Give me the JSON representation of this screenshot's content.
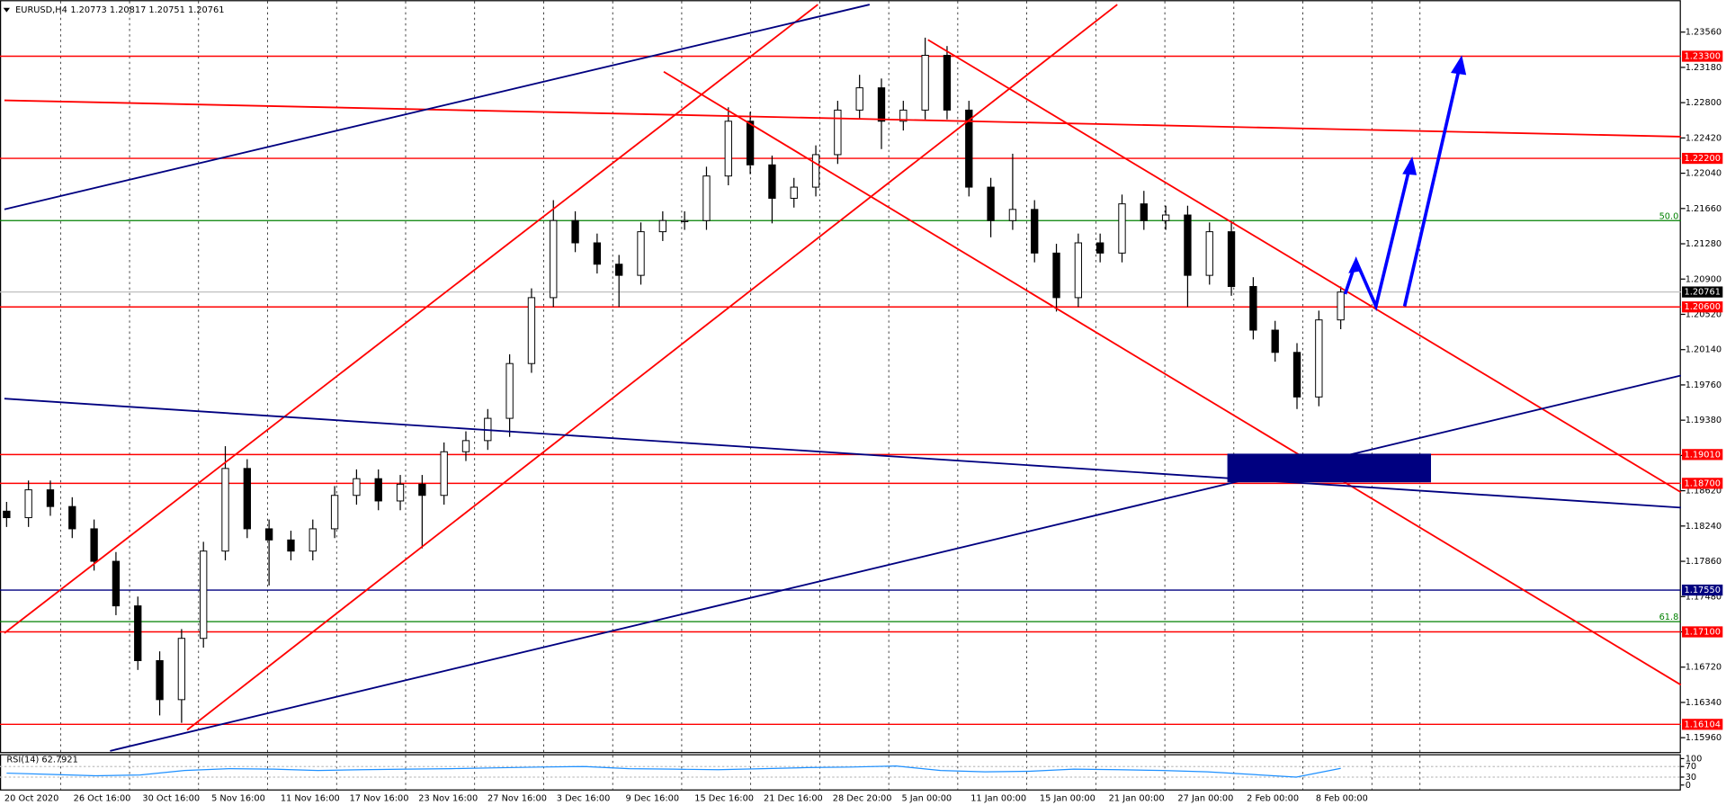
{
  "header": {
    "symbol": "EURUSD,H4",
    "ohlc": "1.20773 1.20817 1.20751 1.20761"
  },
  "chart_data": {
    "type": "candlestick",
    "open": [
      1.184,
      1.1833,
      1.1863,
      1.1845,
      1.1821,
      1.1786,
      1.1738,
      1.1679,
      1.1637,
      1.1703,
      1.1797,
      1.1886,
      1.1821,
      1.1809,
      1.1797,
      1.1821,
      1.1857,
      1.1875,
      1.1851,
      1.1869,
      1.1857,
      1.1904,
      1.1916,
      1.194,
      1.1999,
      1.207,
      1.2153,
      1.2129,
      1.2106,
      1.2094,
      1.2141,
      1.2153,
      1.2153,
      1.2201,
      1.226,
      1.2213,
      1.2177,
      1.2189,
      1.2224,
      1.2272,
      1.2296,
      1.226,
      1.2272,
      1.2331,
      1.2272,
      1.2189,
      1.2153,
      1.2165,
      1.2118,
      1.207,
      1.2129,
      1.2118,
      1.2171,
      1.2153,
      1.2159,
      1.2094,
      1.2141,
      1.2082,
      1.2035,
      1.2011,
      1.1963,
      1.2046
    ],
    "high": [
      1.185,
      1.1873,
      1.1873,
      1.1855,
      1.1831,
      1.1796,
      1.1748,
      1.1689,
      1.1713,
      1.1807,
      1.191,
      1.1896,
      1.1831,
      1.1819,
      1.1831,
      1.1867,
      1.1885,
      1.1885,
      1.1879,
      1.1879,
      1.1914,
      1.1926,
      1.195,
      1.2009,
      1.208,
      1.2175,
      1.2163,
      1.2139,
      1.2116,
      1.2151,
      1.2163,
      1.2163,
      1.2211,
      1.2275,
      1.227,
      1.2223,
      1.2199,
      1.2234,
      1.2282,
      1.231,
      1.2306,
      1.2282,
      1.235,
      1.2341,
      1.2282,
      1.2199,
      1.2225,
      1.2175,
      1.2128,
      1.2139,
      1.2139,
      1.2181,
      1.2185,
      1.2169,
      1.2169,
      1.2151,
      1.2151,
      1.2092,
      1.2045,
      1.2021,
      1.2056,
      1.2082
    ],
    "low": [
      1.1823,
      1.1823,
      1.1835,
      1.1811,
      1.1776,
      1.1728,
      1.1669,
      1.162,
      1.1612,
      1.1693,
      1.1787,
      1.1811,
      1.176,
      1.1787,
      1.1787,
      1.1811,
      1.1847,
      1.1841,
      1.1841,
      1.18,
      1.1847,
      1.1894,
      1.1906,
      1.192,
      1.1989,
      1.206,
      1.2119,
      1.2096,
      1.206,
      1.2084,
      1.2131,
      1.2143,
      1.2143,
      1.2191,
      1.2203,
      1.215,
      1.2167,
      1.2179,
      1.2214,
      1.2262,
      1.223,
      1.225,
      1.2262,
      1.2262,
      1.2179,
      1.2135,
      1.2143,
      1.2108,
      1.2055,
      1.206,
      1.2108,
      1.2108,
      1.2143,
      1.2143,
      1.206,
      1.2084,
      1.2072,
      1.2025,
      1.2001,
      1.195,
      1.1953,
      1.2036
    ],
    "close": [
      1.1833,
      1.1863,
      1.1845,
      1.1821,
      1.1786,
      1.1738,
      1.1679,
      1.1637,
      1.1703,
      1.1797,
      1.1886,
      1.1821,
      1.1809,
      1.1797,
      1.1821,
      1.1857,
      1.1875,
      1.1851,
      1.1869,
      1.1857,
      1.1904,
      1.1916,
      1.194,
      1.1999,
      1.207,
      1.2153,
      1.2129,
      1.2106,
      1.2094,
      1.2141,
      1.2153,
      1.2153,
      1.2201,
      1.226,
      1.2213,
      1.2177,
      1.2189,
      1.2224,
      1.2272,
      1.2296,
      1.226,
      1.2272,
      1.2331,
      1.2272,
      1.2189,
      1.2153,
      1.2165,
      1.2118,
      1.207,
      1.2129,
      1.2118,
      1.2171,
      1.2153,
      1.2159,
      1.2094,
      1.2141,
      1.2082,
      1.2035,
      1.2011,
      1.1963,
      1.2046,
      1.2076
    ],
    "x_labels": [
      "20 Oct 2020",
      "26 Oct 16:00",
      "30 Oct 16:00",
      "5 Nov 16:00",
      "11 Nov 16:00",
      "17 Nov 16:00",
      "23 Nov 16:00",
      "27 Nov 16:00",
      "3 Dec 16:00",
      "9 Dec 16:00",
      "15 Dec 16:00",
      "21 Dec 16:00",
      "28 Dec 20:00",
      "5 Jan 00:00",
      "11 Jan 00:00",
      "15 Jan 00:00",
      "21 Jan 00:00",
      "27 Jan 00:00",
      "2 Feb 00:00",
      "8 Feb 00:00"
    ],
    "ylim": [
      1.15806,
      1.23904
    ],
    "yticks": [
      {
        "value": 1.2356,
        "label": "1.23560"
      },
      {
        "value": 1.2318,
        "label": "1.23180"
      },
      {
        "value": 1.228,
        "label": "1.22800"
      },
      {
        "value": 1.2242,
        "label": "1.22420"
      },
      {
        "value": 1.2204,
        "label": "1.22040"
      },
      {
        "value": 1.2166,
        "label": "1.21660"
      },
      {
        "value": 1.2128,
        "label": "1.21280"
      },
      {
        "value": 1.209,
        "label": "1.20900"
      },
      {
        "value": 1.2052,
        "label": "1.20520"
      },
      {
        "value": 1.2014,
        "label": "1.20140"
      },
      {
        "value": 1.1976,
        "label": "1.19760"
      },
      {
        "value": 1.1938,
        "label": "1.19380"
      },
      {
        "value": 1.19,
        "label": "1.19000"
      },
      {
        "value": 1.1862,
        "label": "1.18620"
      },
      {
        "value": 1.1824,
        "label": "1.18240"
      },
      {
        "value": 1.1786,
        "label": "1.17860"
      },
      {
        "value": 1.1748,
        "label": "1.17480"
      },
      {
        "value": 1.171,
        "label": "1.17100"
      },
      {
        "value": 1.1672,
        "label": "1.16720"
      },
      {
        "value": 1.1634,
        "label": "1.16340"
      },
      {
        "value": 1.1596,
        "label": "1.15960"
      }
    ],
    "levels": [
      {
        "value": 1.233,
        "label": "1.23300",
        "color": "#ff0000"
      },
      {
        "value": 1.222,
        "label": "1.22200",
        "color": "#ff0000"
      },
      {
        "value": 1.206,
        "label": "1.20600",
        "color": "#ff0000"
      },
      {
        "value": 1.1901,
        "label": "1.19010",
        "color": "#ff0000"
      },
      {
        "value": 1.187,
        "label": "1.18700",
        "color": "#ff0000"
      },
      {
        "value": 1.1755,
        "label": "1.17550",
        "color": "#000080"
      },
      {
        "value": 1.171,
        "label": "1.17100",
        "color": "#ff0000"
      },
      {
        "value": 1.16104,
        "label": "1.16104",
        "color": "#ff0000"
      }
    ],
    "fib_levels": [
      {
        "value": 1.2153,
        "label": "50.0"
      },
      {
        "value": 1.1721,
        "label": "61.8"
      }
    ],
    "current": {
      "value": 1.20761,
      "label": "1.20761"
    },
    "grid": true
  },
  "rsi": {
    "label": "RSI(14) 62.7921",
    "ylim": [
      0,
      100
    ],
    "yticks": [
      100,
      70,
      30,
      0
    ],
    "color": "#1e90ff",
    "values": [
      45,
      40,
      35,
      38,
      55,
      62,
      60,
      55,
      58,
      60,
      62,
      65,
      68,
      70,
      62,
      60,
      58,
      62,
      66,
      68,
      72,
      55,
      50,
      52,
      60,
      58,
      55,
      50,
      40,
      30,
      63
    ]
  }
}
